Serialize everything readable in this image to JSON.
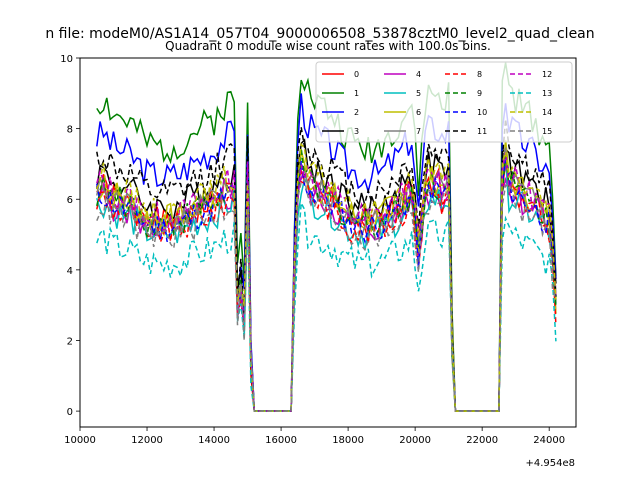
{
  "header": {
    "suptitle": "n file: modeM0/AS1A14_057T04_9000006508_53878cztM0_level2_quad_clean",
    "title": "Quadrant 0 module wise count rates with 100.0s bins."
  },
  "chart_data": {
    "type": "line",
    "title": "Quadrant 0 module wise count rates with 100.0s bins.",
    "xlabel": "",
    "ylabel": "",
    "x_offset_label": "+4.954e8",
    "xlim": [
      10000,
      24800
    ],
    "ylim": [
      -0.45,
      10
    ],
    "xticks": [
      10000,
      12000,
      14000,
      16000,
      18000,
      20000,
      22000,
      24000
    ],
    "yticks": [
      0,
      2,
      4,
      6,
      8,
      10
    ],
    "legend_location": "upper right",
    "legend_columns": 4,
    "profile": {
      "x": [
        10500,
        10700,
        11000,
        11500,
        12000,
        12500,
        13000,
        13500,
        14000,
        14300,
        14600,
        14700,
        14800,
        14900,
        15000,
        15100,
        15200,
        15300,
        16300,
        16400,
        16500,
        16600,
        16800,
        17000,
        17500,
        18000,
        18500,
        19000,
        19500,
        19900,
        20100,
        20300,
        20400,
        20500,
        20600,
        20700,
        20800,
        21000,
        21100,
        21200,
        21300,
        22500,
        22600,
        22700,
        22800,
        23000,
        23500,
        24000,
        24200
      ],
      "y": [
        6.2,
        6.3,
        6.0,
        5.8,
        5.4,
        5.3,
        5.4,
        5.7,
        5.9,
        6.2,
        6.3,
        3.0,
        3.5,
        2.5,
        6.5,
        1.5,
        0.0,
        0.0,
        0.0,
        4.0,
        6.2,
        7.0,
        6.5,
        6.3,
        6.0,
        5.5,
        5.3,
        5.4,
        5.8,
        6.2,
        4.5,
        6.2,
        6.4,
        6.4,
        6.4,
        6.4,
        6.2,
        6.4,
        2.0,
        0.0,
        0.0,
        0.0,
        6.5,
        7.2,
        6.5,
        6.3,
        5.9,
        5.4,
        3.0
      ]
    },
    "series": [
      {
        "name": "0",
        "color": "#ff0000",
        "dash": "solid",
        "scale": 1.0,
        "seed": 1
      },
      {
        "name": "1",
        "color": "#008000",
        "dash": "solid",
        "scale": 1.4,
        "seed": 2
      },
      {
        "name": "2",
        "color": "#0000ff",
        "dash": "solid",
        "scale": 1.25,
        "seed": 3
      },
      {
        "name": "3",
        "color": "#000000",
        "dash": "solid",
        "scale": 1.08,
        "seed": 4
      },
      {
        "name": "4",
        "color": "#bf00bf",
        "dash": "solid",
        "scale": 0.97,
        "seed": 5
      },
      {
        "name": "5",
        "color": "#00bfbf",
        "dash": "solid",
        "scale": 0.94,
        "seed": 6
      },
      {
        "name": "6",
        "color": "#bfbf00",
        "dash": "solid",
        "scale": 1.02,
        "seed": 7
      },
      {
        "name": "7",
        "color": "#808080",
        "dash": "solid",
        "scale": 1.0,
        "seed": 8
      },
      {
        "name": "8",
        "color": "#ff0000",
        "dash": "dashed",
        "scale": 0.96,
        "seed": 9
      },
      {
        "name": "9",
        "color": "#008000",
        "dash": "dashed",
        "scale": 1.0,
        "seed": 10
      },
      {
        "name": "10",
        "color": "#0000ff",
        "dash": "dashed",
        "scale": 0.98,
        "seed": 11
      },
      {
        "name": "11",
        "color": "#000000",
        "dash": "dashed",
        "scale": 1.15,
        "seed": 12
      },
      {
        "name": "12",
        "color": "#bf00bf",
        "dash": "dashed",
        "scale": 1.03,
        "seed": 13
      },
      {
        "name": "13",
        "color": "#00bfbf",
        "dash": "dashed",
        "scale": 0.78,
        "seed": 14
      },
      {
        "name": "14",
        "color": "#bfbf00",
        "dash": "dashed",
        "scale": 1.05,
        "seed": 15
      },
      {
        "name": "15",
        "color": "#808080",
        "dash": "dashed",
        "scale": 0.93,
        "seed": 16
      }
    ]
  }
}
